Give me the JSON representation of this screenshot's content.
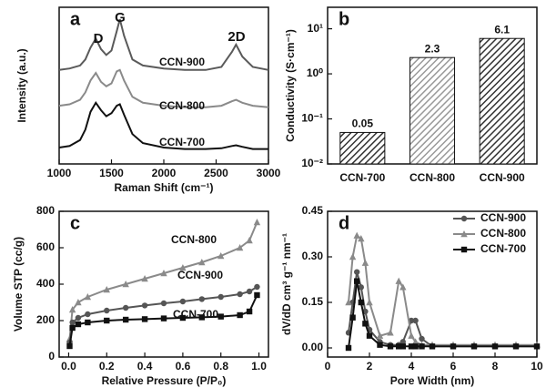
{
  "chart_data": [
    {
      "type": "line",
      "panel_label": "a",
      "x_label": "Raman Shift (cm⁻¹)",
      "y_label": "Intensity (a.u.)",
      "x": [
        1000,
        1100,
        1200,
        1250,
        1300,
        1350,
        1400,
        1450,
        1500,
        1550,
        1580,
        1620,
        1700,
        1800,
        2000,
        2200,
        2400,
        2550,
        2650,
        2690,
        2750,
        2850,
        3000
      ],
      "xlim": [
        1000,
        3000
      ],
      "xticks": [
        1000,
        1500,
        2000,
        2500,
        3000
      ],
      "ylim": [
        0,
        10.5
      ],
      "legend": "inline",
      "annotations": [
        "D",
        "G",
        "2D"
      ],
      "series": [
        {
          "name": "CCN-900",
          "color": "#5a5a5a",
          "values": [
            6.3,
            6.4,
            6.6,
            7.0,
            7.8,
            8.4,
            7.7,
            7.3,
            7.6,
            8.9,
            9.7,
            8.6,
            7.0,
            6.6,
            6.4,
            6.3,
            6.3,
            6.5,
            7.5,
            8.0,
            7.2,
            6.5,
            6.3
          ]
        },
        {
          "name": "CCN-800",
          "color": "#8a8a8a",
          "values": [
            3.9,
            4.0,
            4.3,
            4.8,
            5.6,
            6.1,
            5.5,
            5.2,
            5.4,
            6.2,
            6.3,
            5.6,
            4.5,
            4.1,
            3.9,
            3.8,
            3.8,
            3.9,
            4.2,
            4.3,
            4.1,
            3.9,
            3.8
          ]
        },
        {
          "name": "CCN-700",
          "color": "#111111",
          "values": [
            1.1,
            1.2,
            1.6,
            2.3,
            3.5,
            4.1,
            3.6,
            3.2,
            3.4,
            3.9,
            4.0,
            3.3,
            2.0,
            1.4,
            1.1,
            1.0,
            1.0,
            1.05,
            1.2,
            1.25,
            1.15,
            1.0,
            1.0
          ]
        }
      ]
    },
    {
      "type": "bar",
      "panel_label": "b",
      "y_label": "Conductivity (S·cm⁻¹)",
      "log_y": true,
      "categories": [
        "CCN-700",
        "CCN-800",
        "CCN-900"
      ],
      "values": [
        0.05,
        2.3,
        6.1
      ],
      "colors": [
        "#333333",
        "#999999",
        "#333333"
      ],
      "ylim": [
        0.01,
        30
      ],
      "yticks": [
        {
          "value": 0.01,
          "label": "10⁻²"
        },
        {
          "value": 0.1,
          "label": "10⁻¹"
        },
        {
          "value": 1,
          "label": "10⁰"
        },
        {
          "value": 10,
          "label": "10¹"
        }
      ]
    },
    {
      "type": "line",
      "panel_label": "c",
      "x_label": "Relative Pressure (P/P₀)",
      "y_label": "Volume STP (cc/g)",
      "x": [
        0.005,
        0.02,
        0.05,
        0.1,
        0.2,
        0.3,
        0.4,
        0.5,
        0.6,
        0.7,
        0.8,
        0.9,
        0.95,
        0.99
      ],
      "xlim": [
        -0.05,
        1.05
      ],
      "xticks": [
        {
          "value": 0,
          "label": "0.0"
        },
        0.2,
        0.4,
        0.6,
        0.8,
        {
          "value": 1,
          "label": "1.0"
        }
      ],
      "ylim": [
        0,
        800
      ],
      "yticks": [
        0,
        200,
        400,
        600,
        800
      ],
      "legend": "inline",
      "series": [
        {
          "name": "CCN-800",
          "color": "#8a8a8a",
          "marker": "triangle",
          "values": [
            100,
            260,
            300,
            330,
            370,
            400,
            430,
            460,
            490,
            520,
            555,
            600,
            640,
            740
          ]
        },
        {
          "name": "CCN-900",
          "color": "#555555",
          "marker": "circle",
          "values": [
            80,
            190,
            215,
            235,
            255,
            270,
            283,
            295,
            305,
            318,
            330,
            345,
            360,
            385
          ]
        },
        {
          "name": "CCN-700",
          "color": "#111111",
          "marker": "square",
          "values": [
            60,
            160,
            180,
            190,
            200,
            205,
            208,
            212,
            215,
            218,
            222,
            230,
            250,
            340
          ]
        }
      ]
    },
    {
      "type": "line",
      "panel_label": "d",
      "x_label": "Pore Width (nm)",
      "y_label": "dV/dD cm³ g⁻¹ nm⁻¹",
      "x": [
        1,
        1.2,
        1.4,
        1.6,
        1.8,
        2,
        2.5,
        3,
        3.4,
        3.6,
        4,
        4.2,
        4.5,
        5,
        6,
        7,
        8,
        9,
        10
      ],
      "xlim": [
        0,
        10
      ],
      "xticks": [
        0,
        2,
        4,
        6,
        8,
        10
      ],
      "ylim": [
        -0.03,
        0.45
      ],
      "yticks": [
        {
          "value": 0,
          "label": "0.00"
        },
        0.15,
        {
          "value": 0.3,
          "label": "0.30"
        },
        0.45
      ],
      "legend": "upper right",
      "series": [
        {
          "name": "CCN-900",
          "color": "#555555",
          "marker": "circle",
          "values": [
            0.05,
            0.15,
            0.25,
            0.2,
            0.12,
            0.06,
            0.02,
            0.01,
            0.01,
            0.02,
            0.09,
            0.09,
            0.03,
            0.005,
            0.005,
            0.005,
            0.005,
            0.005,
            0.005
          ]
        },
        {
          "name": "CCN-800",
          "color": "#8a8a8a",
          "marker": "triangle",
          "values": [
            0.15,
            0.3,
            0.37,
            0.36,
            0.28,
            0.15,
            0.04,
            0.05,
            0.22,
            0.2,
            0.04,
            0.02,
            0.01,
            0.01,
            0.01,
            0.01,
            0.01,
            0.01,
            0.01
          ]
        },
        {
          "name": "CCN-700",
          "color": "#111111",
          "marker": "square",
          "values": [
            0,
            0.1,
            0.22,
            0.15,
            0.08,
            0.04,
            0.01,
            0.005,
            0.005,
            0.005,
            0.005,
            0.005,
            0.005,
            0.005,
            0.005,
            0.005,
            0.005,
            0.005,
            0.005
          ]
        }
      ]
    }
  ]
}
